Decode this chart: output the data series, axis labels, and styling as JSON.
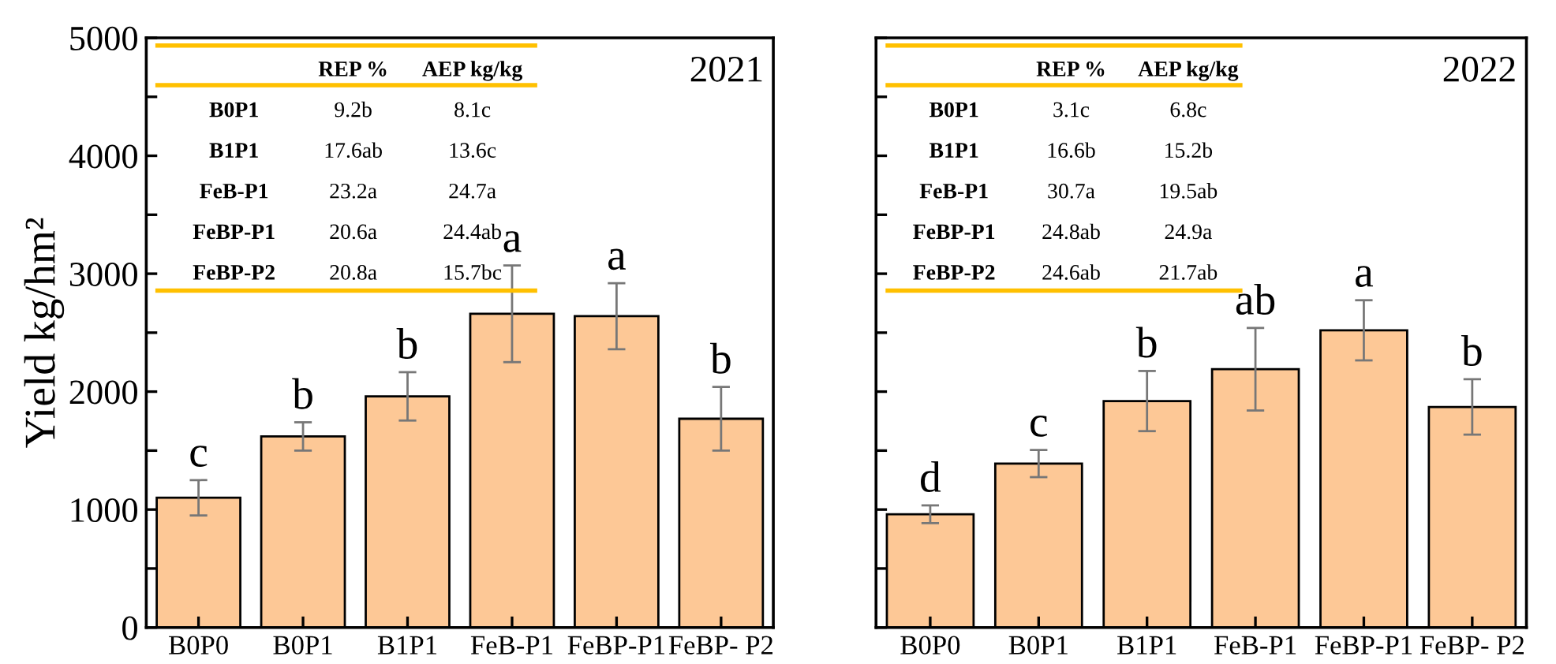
{
  "chart_data": [
    {
      "type": "bar",
      "title": "2021",
      "ylabel": "Yield kg/hm²",
      "categories": [
        "B0P0",
        "B0P1",
        "B1P1",
        "FeB-P1",
        "FeBP-P1",
        "FeBP- P2"
      ],
      "values": [
        1100,
        1620,
        1960,
        2660,
        2640,
        1770
      ],
      "errors": [
        150,
        120,
        205,
        410,
        280,
        270
      ],
      "value_labels": [
        "c",
        "b",
        "b",
        "a",
        "a",
        "b"
      ],
      "color": "#fdc896",
      "ylim": [
        0,
        5000
      ],
      "yticks": [
        0,
        {
          "value": 500,
          "label": null
        },
        1000,
        {
          "value": 1500,
          "label": null
        },
        2000,
        {
          "value": 2500,
          "label": null
        },
        3000,
        {
          "value": 3500,
          "label": null
        },
        4000,
        {
          "value": 4500,
          "label": null
        },
        5000
      ],
      "annotations": [
        "REP %",
        "AEP kg/kg",
        "B0P1",
        "9.2b",
        "8.1c",
        "B1P1",
        "17.6ab",
        "13.6c",
        "FeB-P1",
        "23.2a",
        "24.7a",
        "FeBP-P1",
        "20.6a",
        "24.4ab",
        "FeBP-P2",
        "20.8a",
        "15.7bc"
      ]
    },
    {
      "type": "bar",
      "title": "2022",
      "categories": [
        "B0P0",
        "B0P1",
        "B1P1",
        "FeB-P1",
        "FeBP-P1",
        "FeBP- P2"
      ],
      "values": [
        960,
        1390,
        1920,
        2190,
        2520,
        1870
      ],
      "errors": [
        75,
        115,
        255,
        350,
        255,
        235
      ],
      "value_labels": [
        "d",
        "c",
        "b",
        "ab",
        "a",
        "b"
      ],
      "color": "#fdc896",
      "ylim": [
        0,
        5000
      ],
      "yticks": [
        0,
        {
          "value": 500,
          "label": null
        },
        1000,
        {
          "value": 1500,
          "label": null
        },
        2000,
        {
          "value": 2500,
          "label": null
        },
        3000,
        {
          "value": 3500,
          "label": null
        },
        4000,
        {
          "value": 4500,
          "label": null
        },
        5000
      ],
      "tick_labels": "x",
      "annotations": [
        "REP %",
        "AEP kg/kg",
        "B0P1",
        "3.1c",
        "6.8c",
        "B1P1",
        "16.6b",
        "15.2b",
        "FeB-P1",
        "30.7a",
        "19.5ab",
        "FeBP-P1",
        "24.8ab",
        "24.9a",
        "FeBP-P2",
        "24.6ab",
        "21.7ab"
      ]
    }
  ]
}
